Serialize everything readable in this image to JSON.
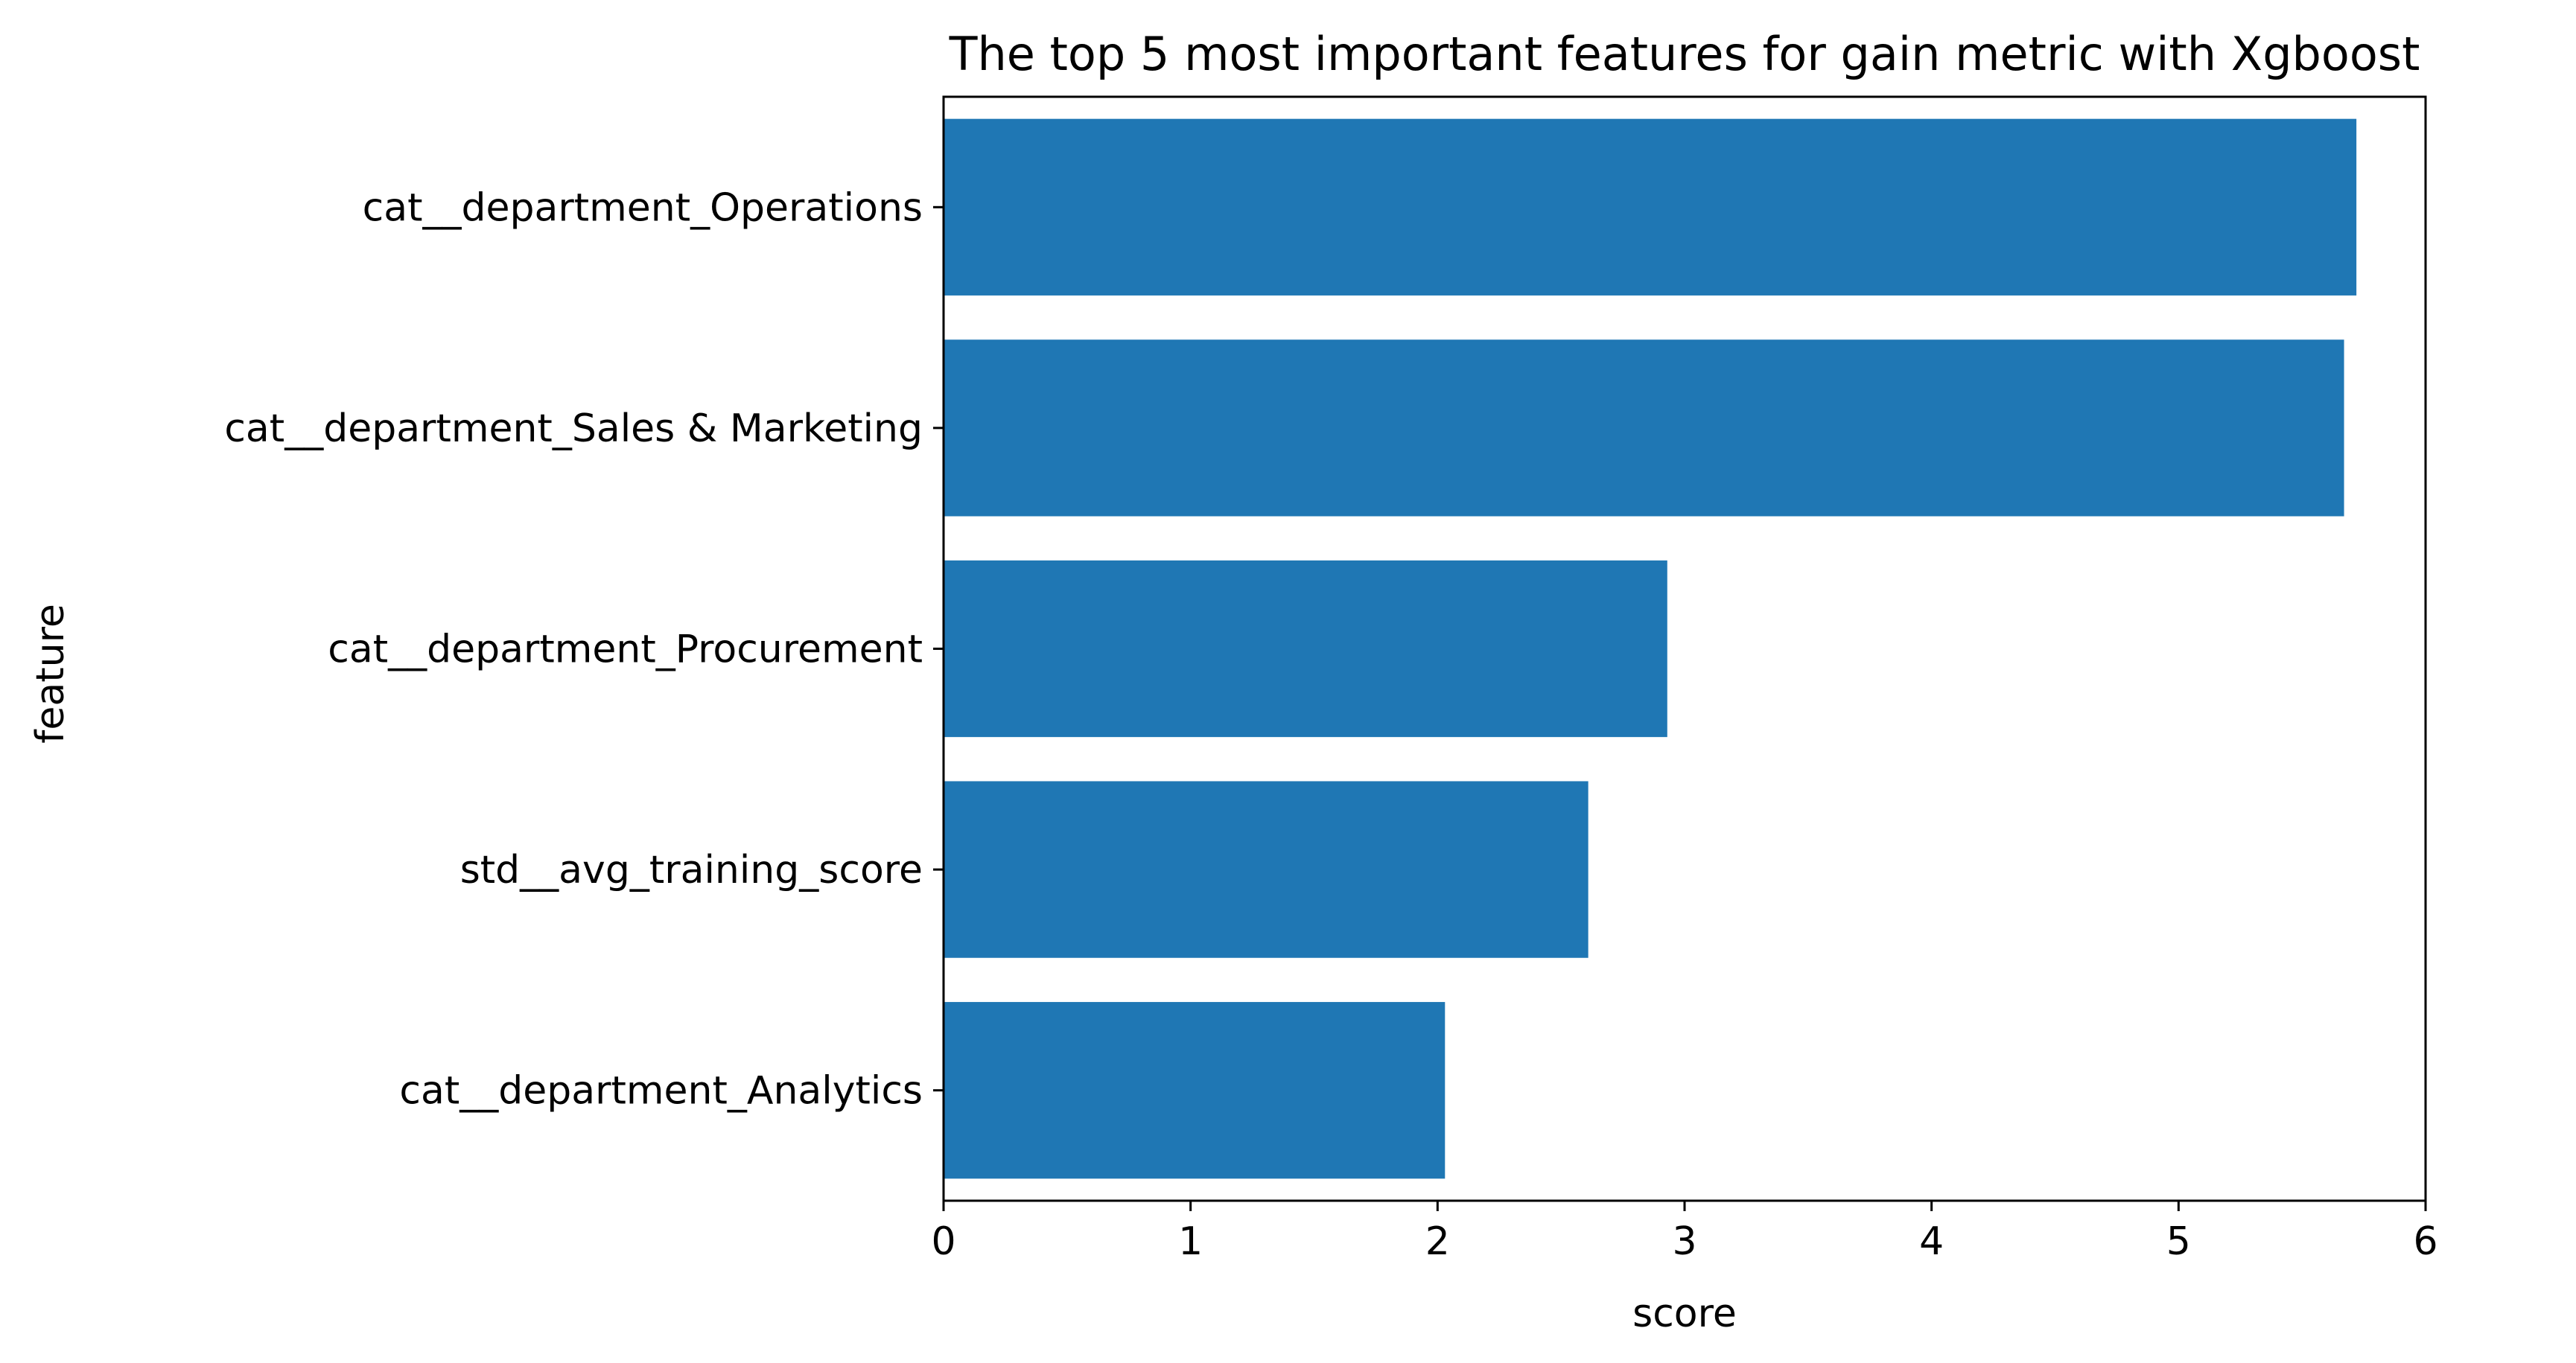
{
  "chart_data": {
    "type": "bar",
    "orientation": "horizontal",
    "title": "The top 5 most important features for gain metric with Xgboost",
    "xlabel": "score",
    "ylabel": "feature",
    "categories": [
      "cat__department_Operations",
      "cat__department_Sales & Marketing",
      "cat__department_Procurement",
      "std__avg_training_score",
      "cat__department_Analytics"
    ],
    "values": [
      5.72,
      5.67,
      2.93,
      2.61,
      2.03
    ],
    "xlim": [
      0,
      6
    ],
    "xticks": [
      "0",
      "1",
      "2",
      "3",
      "4",
      "5",
      "6"
    ],
    "grid": false,
    "legend": "none",
    "bar_color": "#1f77b4"
  }
}
